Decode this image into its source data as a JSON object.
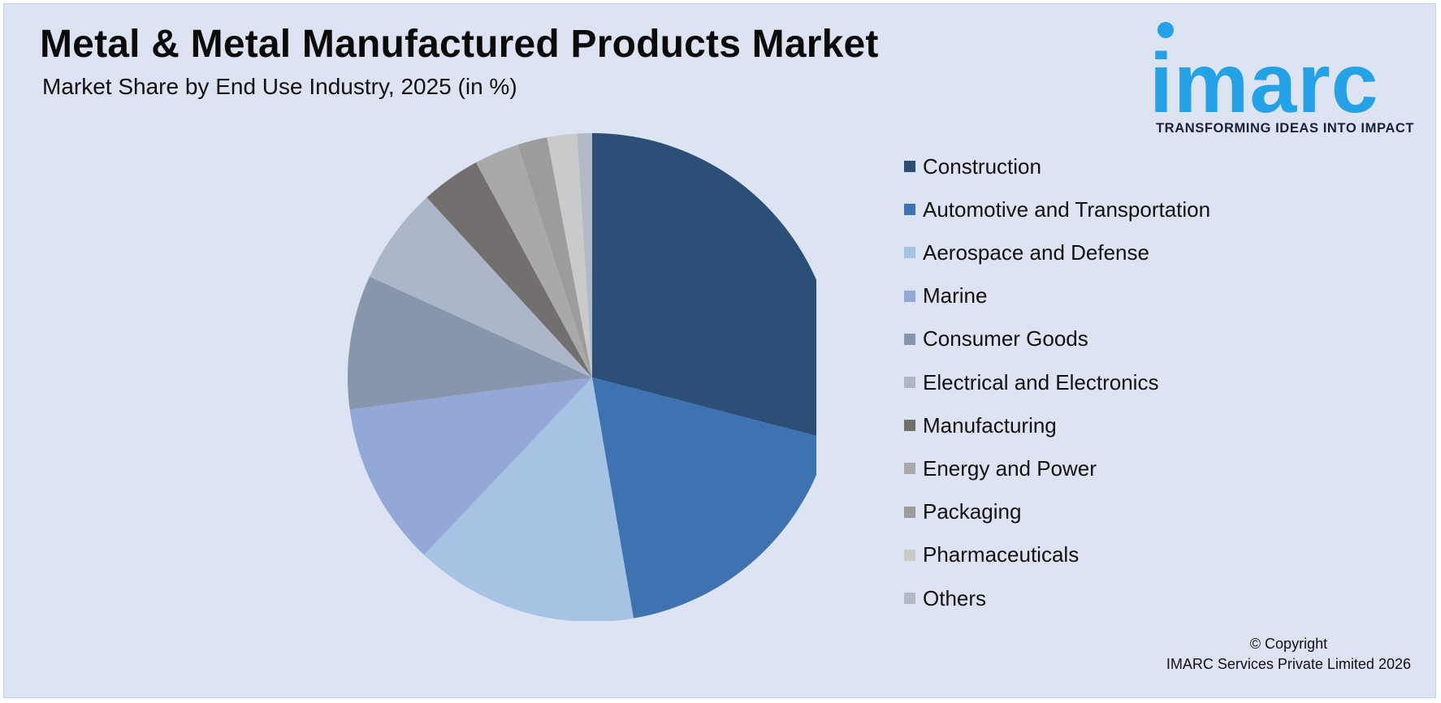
{
  "header": {
    "title": "Metal & Metal Manufactured Products Market",
    "subtitle": "Market Share by End Use Industry, 2025 (in %)"
  },
  "logo": {
    "wordmark": "imarc",
    "tagline": "TRANSFORMING IDEAS INTO IMPACT",
    "color": "#25a2e6"
  },
  "chart_data": {
    "type": "pie",
    "title": "Metal & Metal Manufactured Products Market",
    "subtitle": "Market Share by End Use Industry, 2025 (in %)",
    "legend_position": "right",
    "start_angle_deg": 0,
    "direction": "clockwise",
    "series": [
      {
        "name": "Construction",
        "value": 29.5,
        "color": "#2c4f78"
      },
      {
        "name": "Automotive and Transportation",
        "value": 18.5,
        "color": "#3f72b0"
      },
      {
        "name": "Aerospace and Defense",
        "value": 15.0,
        "color": "#a6c3e3"
      },
      {
        "name": "Marine",
        "value": 11.0,
        "color": "#94a8d8"
      },
      {
        "name": "Consumer Goods",
        "value": 9.0,
        "color": "#8896ad"
      },
      {
        "name": "Electrical and Electronics",
        "value": 6.5,
        "color": "#adb6c8"
      },
      {
        "name": "Manufacturing",
        "value": 4.0,
        "color": "#736f6f"
      },
      {
        "name": "Energy and Power",
        "value": 3.0,
        "color": "#a9a9a9"
      },
      {
        "name": "Packaging",
        "value": 2.0,
        "color": "#9c9c9c"
      },
      {
        "name": "Pharmaceuticals",
        "value": 2.0,
        "color": "#cacaca"
      },
      {
        "name": "Others",
        "value": 1.0,
        "color": "#b2b9c7"
      }
    ]
  },
  "footer": {
    "copyright_line1": "© Copyright",
    "copyright_line2": "IMARC Services Private Limited 2026"
  }
}
